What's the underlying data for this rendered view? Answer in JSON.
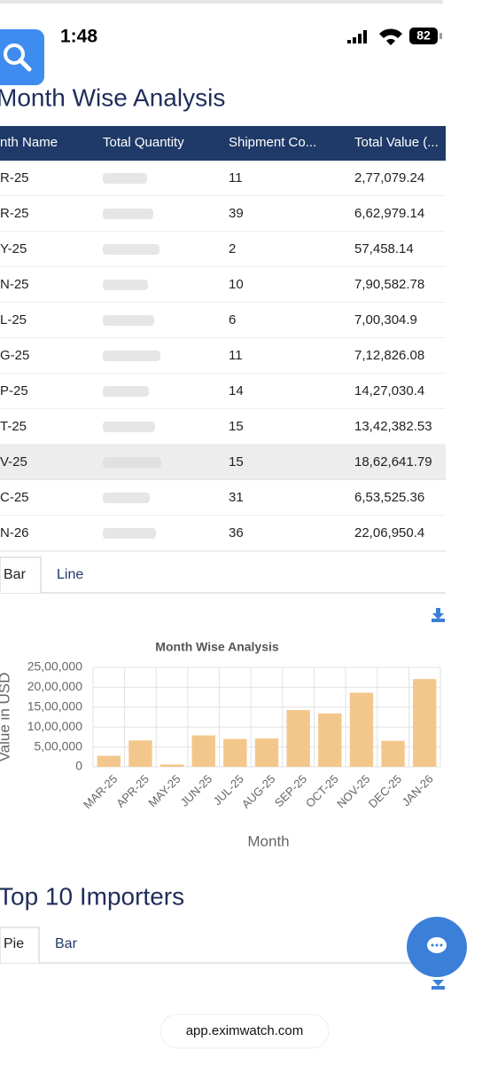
{
  "status_bar": {
    "time": "1:48",
    "battery": "82"
  },
  "heading": "Month Wise Analysis",
  "table": {
    "columns": [
      "nth Name",
      "Total Quantity",
      "Shipment Co...",
      "Total Value (..."
    ],
    "rows": [
      [
        "R-25",
        "11",
        "2,77,079.24"
      ],
      [
        "R-25",
        "39",
        "6,62,979.14"
      ],
      [
        "Y-25",
        "2",
        "57,458.14"
      ],
      [
        "N-25",
        "10",
        "7,90,582.78"
      ],
      [
        "L-25",
        "6",
        "7,00,304.9"
      ],
      [
        "G-25",
        "11",
        "7,12,826.08"
      ],
      [
        "P-25",
        "14",
        "14,27,030.4"
      ],
      [
        "T-25",
        "15",
        "13,42,382.53"
      ],
      [
        "V-25",
        "15",
        "18,62,641.79"
      ],
      [
        "C-25",
        "31",
        "6,53,525.36"
      ],
      [
        "N-26",
        "36",
        "22,06,950.4"
      ]
    ]
  },
  "tabs": [
    "Bar",
    "Line"
  ],
  "chart_data": {
    "type": "bar",
    "title": "Month Wise Analysis",
    "x_label": "Month",
    "y_label": "Value in USD",
    "categories": [
      "MAR-25",
      "APR-25",
      "MAY-25",
      "JUN-25",
      "JUL-25",
      "AUG-25",
      "SEP-25",
      "OCT-25",
      "NOV-25",
      "DEC-25",
      "JAN-26"
    ],
    "values": [
      277079.24,
      662979.14,
      57458.14,
      790582.78,
      700304.9,
      712826.08,
      1427030.4,
      1342382.53,
      1862641.79,
      653525.36,
      2206950.4
    ],
    "color": "#f3c78b",
    "ylim": [
      0,
      2500000
    ],
    "yticks": [
      0,
      {
        "value": 500000,
        "label": "5,00,000"
      },
      {
        "value": 1000000,
        "label": "10,00,000"
      },
      {
        "value": 1500000,
        "label": "15,00,000"
      },
      {
        "value": 2000000,
        "label": "20,00,000"
      },
      {
        "value": 2500000,
        "label": "25,00,000"
      }
    ],
    "grid": true
  },
  "section2": {
    "title": "Top 10 Importers",
    "tabs": [
      "Pie",
      "Bar"
    ]
  },
  "url": "app.eximwatch.com"
}
